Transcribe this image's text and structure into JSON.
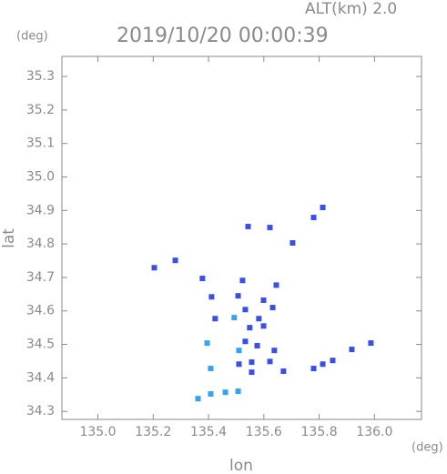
{
  "chart_data": {
    "type": "scatter",
    "title": "2019/10/20 00:00:39",
    "subtitle": "ALT(km) 2.0",
    "y_unit": "(deg)",
    "x_unit": "(deg)",
    "x_label": "lon",
    "y_label": "lat",
    "xlim": [
      134.87,
      136.17
    ],
    "ylim": [
      34.276,
      35.36
    ],
    "xticks": [
      {
        "value": 135.0,
        "label": "135.0"
      },
      135.2,
      135.4,
      135.6,
      135.8,
      {
        "value": 136.0,
        "label": "136.0"
      }
    ],
    "yticks": [
      34.3,
      34.4,
      34.5,
      34.6,
      34.7,
      34.8,
      34.9,
      {
        "value": 35.0,
        "label": "35.0"
      },
      35.1,
      35.2,
      35.3
    ],
    "series": [
      {
        "color": "#3a4ee8",
        "x": [
          135.204,
          135.28,
          135.78,
          135.813,
          135.622,
          135.543,
          135.704,
          135.378,
          135.523,
          135.645,
          135.411,
          135.507,
          135.599,
          135.632,
          135.533,
          135.582,
          135.549,
          135.424,
          135.599,
          135.533,
          135.576,
          135.638,
          135.556,
          135.51,
          135.622,
          135.671,
          135.556,
          135.987,
          135.918,
          135.849,
          135.813,
          135.78
        ],
        "values": [
          34.729,
          34.751,
          34.879,
          34.909,
          34.849,
          34.852,
          34.803,
          34.697,
          34.691,
          34.677,
          34.642,
          34.645,
          34.632,
          34.61,
          34.604,
          34.577,
          34.55,
          34.577,
          34.555,
          34.509,
          34.496,
          34.482,
          34.447,
          34.441,
          34.449,
          34.42,
          34.417,
          34.504,
          34.485,
          34.452,
          34.441,
          34.428
        ]
      },
      {
        "color": "#36a3f0",
        "x": [
          135.493,
          135.395,
          135.51,
          135.408,
          135.362,
          135.408,
          135.461,
          135.507
        ],
        "values": [
          34.58,
          34.504,
          34.482,
          34.428,
          34.338,
          34.352,
          34.357,
          34.36
        ]
      }
    ]
  }
}
